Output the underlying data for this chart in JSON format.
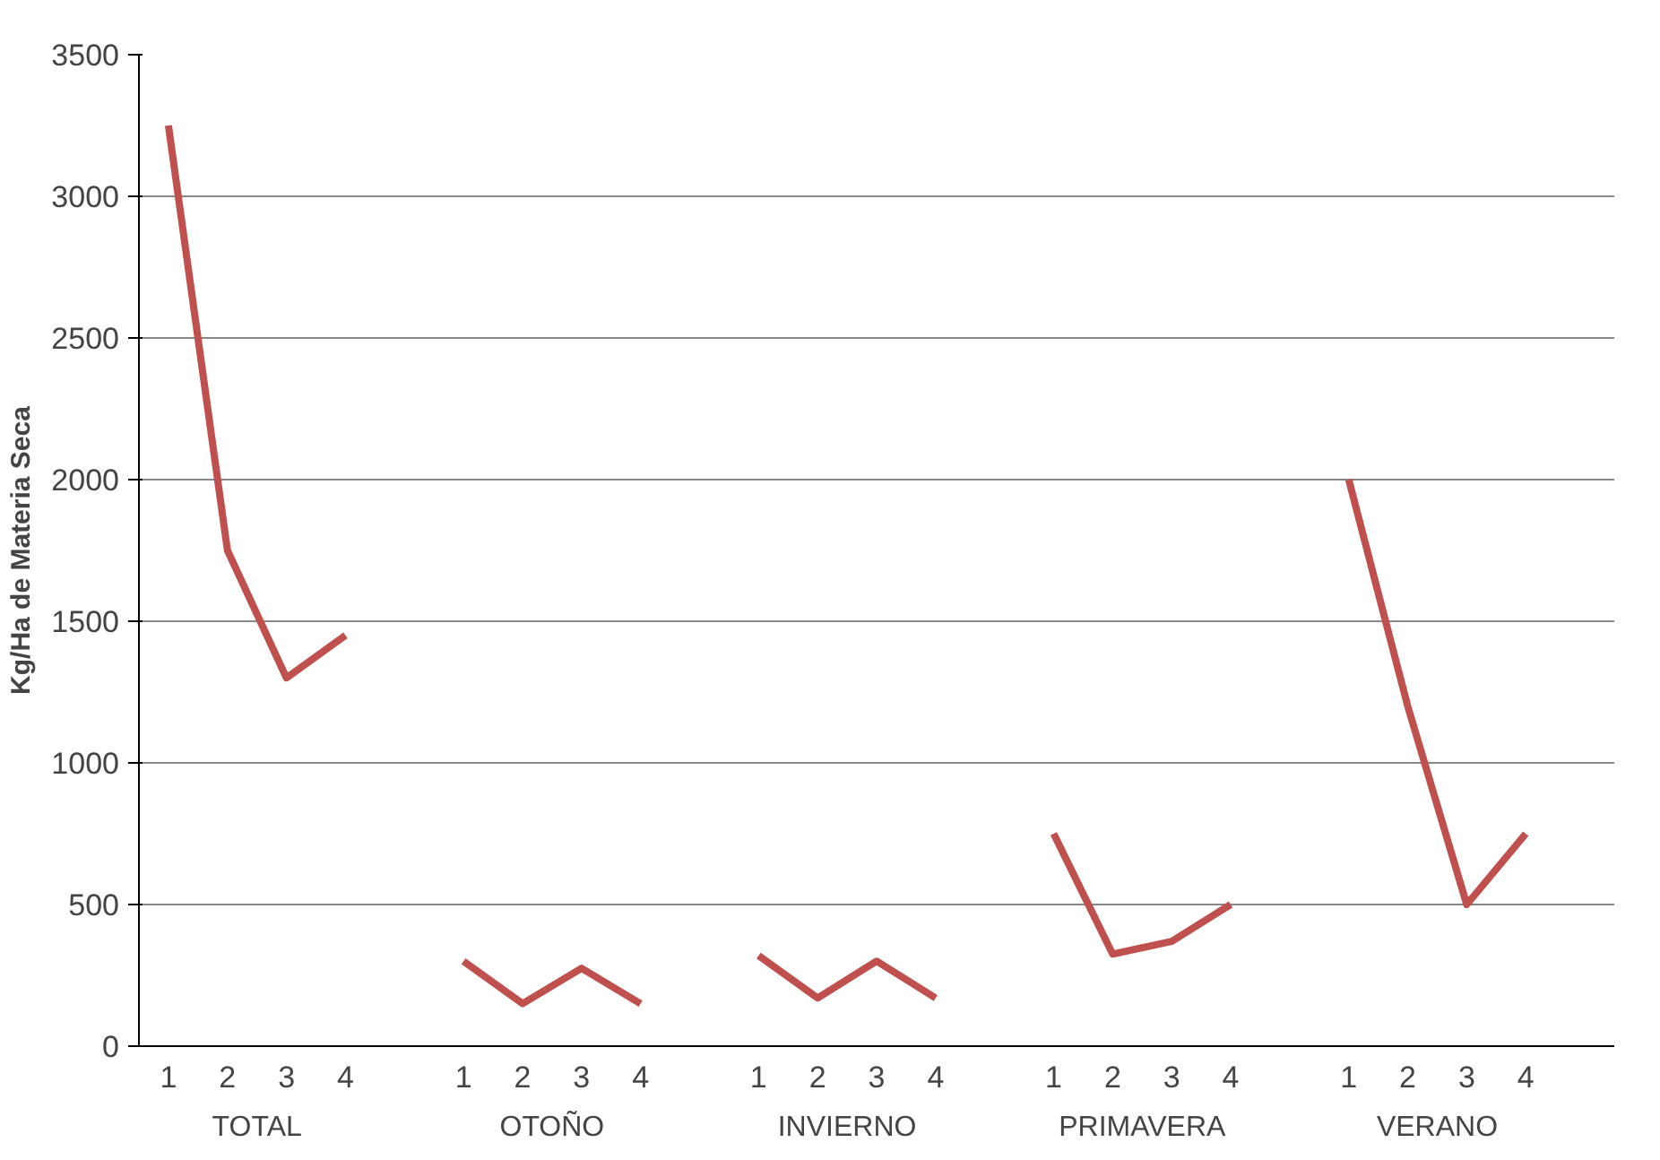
{
  "chart_data": {
    "type": "line",
    "ylabel": "Kg/Ha de Materia Seca",
    "categories": [
      "1",
      "2",
      "3",
      "4",
      null,
      "1",
      "2",
      "3",
      "4",
      null,
      "1",
      "2",
      "3",
      "4",
      null,
      "1",
      "2",
      "3",
      "4",
      null,
      "1",
      "2",
      "3",
      "4",
      null
    ],
    "series": [
      {
        "color": "#c0504d",
        "values": [
          3250,
          1750,
          1300,
          1450,
          null,
          300,
          150,
          275,
          150,
          null,
          320,
          170,
          300,
          170,
          null,
          750,
          325,
          370,
          500,
          null,
          2000,
          1200,
          500,
          750,
          null
        ]
      }
    ],
    "annotations": [
      "TOTAL",
      "OTOÑO",
      "INVIERNO",
      "PRIMAVERA",
      "VERANO"
    ],
    "ylim": [
      0,
      3500
    ],
    "yticks": [
      0,
      500,
      1000,
      1500,
      2000,
      2500,
      3000,
      3500
    ],
    "grid": "y",
    "marker": "none",
    "line_style": "solid"
  }
}
